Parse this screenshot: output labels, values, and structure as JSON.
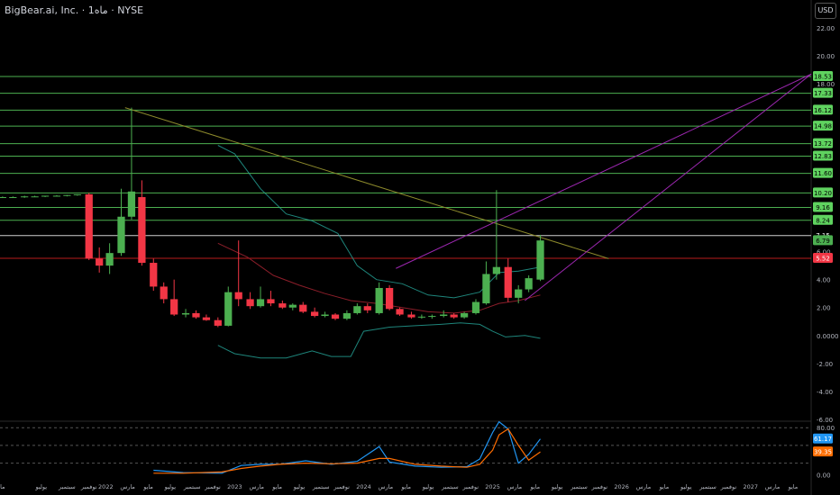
{
  "header": {
    "title": "BigBear.ai, Inc. · 1ماه · NYSE",
    "currency": "USD"
  },
  "colors": {
    "up": "#4caf50",
    "down": "#f23645",
    "hline": "#4caf50",
    "trend_olive": "#8d8a2c",
    "channel_purple": "#9c27b0",
    "band": "#26a69a",
    "mid": "#8b1e2a",
    "support": "#b71c1c",
    "price_line": "#cfcfcf",
    "osc_k": "#2196f3",
    "osc_d": "#ff6d00"
  },
  "chart_data": [
    {
      "type": "candlestick",
      "title": "",
      "ylim": [
        -6,
        24
      ],
      "xlim": [
        2021.18,
        2027.47
      ],
      "y_ticks": [
        {
          "value": 22,
          "label": "22.00"
        },
        {
          "value": 20,
          "label": "20.00"
        },
        {
          "value": 18,
          "label": "18.00"
        },
        {
          "value": 6,
          "label": "6.00"
        },
        {
          "value": 4,
          "label": "4.00"
        },
        {
          "value": 2,
          "label": "2.00"
        },
        {
          "value": 0,
          "label": "0.0000"
        },
        {
          "value": -2,
          "label": "-2.00"
        },
        {
          "value": -4,
          "label": "-4.00"
        },
        {
          "value": -6,
          "label": "-6.00"
        }
      ],
      "x_ticks": [
        {
          "x": 2021.2,
          "label": "ما"
        },
        {
          "x": 2021.5,
          "label": "يوليو"
        },
        {
          "x": 2021.7,
          "label": "سبتمبر"
        },
        {
          "x": 2021.87,
          "label": "نوفمبر"
        },
        {
          "x": 2022.0,
          "label": "2022"
        },
        {
          "x": 2022.17,
          "label": "مارس"
        },
        {
          "x": 2022.33,
          "label": "مايو"
        },
        {
          "x": 2022.5,
          "label": "يوليو"
        },
        {
          "x": 2022.67,
          "label": "سبتمبر"
        },
        {
          "x": 2022.83,
          "label": "نوفمبر"
        },
        {
          "x": 2023.0,
          "label": "2023"
        },
        {
          "x": 2023.17,
          "label": "مارس"
        },
        {
          "x": 2023.33,
          "label": "مايو"
        },
        {
          "x": 2023.5,
          "label": "يوليو"
        },
        {
          "x": 2023.67,
          "label": "سبتمبر"
        },
        {
          "x": 2023.83,
          "label": "نوفمبر"
        },
        {
          "x": 2024.0,
          "label": "2024"
        },
        {
          "x": 2024.17,
          "label": "مارس"
        },
        {
          "x": 2024.33,
          "label": "مايو"
        },
        {
          "x": 2024.5,
          "label": "يوليو"
        },
        {
          "x": 2024.67,
          "label": "سبتمبر"
        },
        {
          "x": 2024.83,
          "label": "نوفمبر"
        },
        {
          "x": 2025.0,
          "label": "2025"
        },
        {
          "x": 2025.17,
          "label": "مارس"
        },
        {
          "x": 2025.33,
          "label": "مايو"
        },
        {
          "x": 2025.5,
          "label": "يوليو"
        },
        {
          "x": 2025.67,
          "label": "سبتمبر"
        },
        {
          "x": 2025.83,
          "label": "نوفمبر"
        },
        {
          "x": 2026.0,
          "label": "2026"
        },
        {
          "x": 2026.17,
          "label": "مارس"
        },
        {
          "x": 2026.33,
          "label": "مايو"
        },
        {
          "x": 2026.5,
          "label": "يوليو"
        },
        {
          "x": 2026.67,
          "label": "سبتمبر"
        },
        {
          "x": 2026.83,
          "label": "نوفمبر"
        },
        {
          "x": 2027.0,
          "label": "2027"
        },
        {
          "x": 2027.17,
          "label": "مارس"
        },
        {
          "x": 2027.33,
          "label": "مايو"
        }
      ],
      "candles": [
        {
          "t": 2021.2,
          "o": 9.9,
          "h": 9.95,
          "l": 9.85,
          "c": 9.9
        },
        {
          "t": 2021.28,
          "o": 9.9,
          "h": 9.95,
          "l": 9.85,
          "c": 9.9
        },
        {
          "t": 2021.37,
          "o": 9.9,
          "h": 10.0,
          "l": 9.85,
          "c": 9.95
        },
        {
          "t": 2021.45,
          "o": 9.95,
          "h": 10.0,
          "l": 9.9,
          "c": 9.95
        },
        {
          "t": 2021.53,
          "o": 9.95,
          "h": 10.0,
          "l": 9.9,
          "c": 10.0
        },
        {
          "t": 2021.62,
          "o": 10.0,
          "h": 10.05,
          "l": 9.95,
          "c": 10.0
        },
        {
          "t": 2021.7,
          "o": 10.0,
          "h": 10.05,
          "l": 9.95,
          "c": 10.05
        },
        {
          "t": 2021.78,
          "o": 10.05,
          "h": 10.1,
          "l": 10.0,
          "c": 10.1
        },
        {
          "t": 2021.87,
          "o": 10.1,
          "h": 10.2,
          "l": 5.4,
          "c": 5.5
        },
        {
          "t": 2021.95,
          "o": 5.5,
          "h": 6.3,
          "l": 4.5,
          "c": 5.0
        },
        {
          "t": 2022.03,
          "o": 5.0,
          "h": 6.6,
          "l": 4.4,
          "c": 5.9
        },
        {
          "t": 2022.12,
          "o": 5.9,
          "h": 10.5,
          "l": 5.7,
          "c": 8.5
        },
        {
          "t": 2022.2,
          "o": 8.5,
          "h": 16.3,
          "l": 8.3,
          "c": 10.3
        },
        {
          "t": 2022.28,
          "o": 9.9,
          "h": 11.1,
          "l": 5.0,
          "c": 5.2
        },
        {
          "t": 2022.37,
          "o": 5.2,
          "h": 5.5,
          "l": 3.2,
          "c": 3.5
        },
        {
          "t": 2022.45,
          "o": 3.5,
          "h": 3.8,
          "l": 2.3,
          "c": 2.6
        },
        {
          "t": 2022.53,
          "o": 2.6,
          "h": 4.0,
          "l": 1.4,
          "c": 1.5
        },
        {
          "t": 2022.62,
          "o": 1.5,
          "h": 1.9,
          "l": 1.3,
          "c": 1.6
        },
        {
          "t": 2022.7,
          "o": 1.6,
          "h": 1.8,
          "l": 1.2,
          "c": 1.3
        },
        {
          "t": 2022.78,
          "o": 1.3,
          "h": 1.5,
          "l": 1.05,
          "c": 1.1
        },
        {
          "t": 2022.87,
          "o": 1.1,
          "h": 1.3,
          "l": 0.6,
          "c": 0.7
        },
        {
          "t": 2022.95,
          "o": 0.7,
          "h": 3.5,
          "l": 0.65,
          "c": 3.1
        },
        {
          "t": 2023.03,
          "o": 3.1,
          "h": 6.8,
          "l": 2.1,
          "c": 2.6
        },
        {
          "t": 2023.12,
          "o": 2.6,
          "h": 3.1,
          "l": 1.9,
          "c": 2.1
        },
        {
          "t": 2023.2,
          "o": 2.1,
          "h": 3.5,
          "l": 2.0,
          "c": 2.6
        },
        {
          "t": 2023.28,
          "o": 2.6,
          "h": 3.2,
          "l": 2.1,
          "c": 2.3
        },
        {
          "t": 2023.37,
          "o": 2.3,
          "h": 2.5,
          "l": 1.9,
          "c": 2.0
        },
        {
          "t": 2023.45,
          "o": 2.0,
          "h": 2.3,
          "l": 1.8,
          "c": 2.2
        },
        {
          "t": 2023.53,
          "o": 2.2,
          "h": 2.4,
          "l": 1.6,
          "c": 1.7
        },
        {
          "t": 2023.62,
          "o": 1.7,
          "h": 2.0,
          "l": 1.3,
          "c": 1.4
        },
        {
          "t": 2023.7,
          "o": 1.4,
          "h": 1.7,
          "l": 1.3,
          "c": 1.5
        },
        {
          "t": 2023.78,
          "o": 1.5,
          "h": 1.6,
          "l": 1.1,
          "c": 1.2
        },
        {
          "t": 2023.87,
          "o": 1.2,
          "h": 1.8,
          "l": 1.1,
          "c": 1.6
        },
        {
          "t": 2023.95,
          "o": 1.6,
          "h": 2.3,
          "l": 1.5,
          "c": 2.1
        },
        {
          "t": 2024.03,
          "o": 2.1,
          "h": 2.3,
          "l": 1.6,
          "c": 1.8
        },
        {
          "t": 2024.12,
          "o": 1.6,
          "h": 3.8,
          "l": 1.5,
          "c": 3.4
        },
        {
          "t": 2024.2,
          "o": 3.4,
          "h": 3.6,
          "l": 1.8,
          "c": 1.9
        },
        {
          "t": 2024.28,
          "o": 1.9,
          "h": 2.0,
          "l": 1.4,
          "c": 1.5
        },
        {
          "t": 2024.37,
          "o": 1.5,
          "h": 1.7,
          "l": 1.2,
          "c": 1.3
        },
        {
          "t": 2024.45,
          "o": 1.3,
          "h": 1.5,
          "l": 1.2,
          "c": 1.35
        },
        {
          "t": 2024.53,
          "o": 1.35,
          "h": 1.5,
          "l": 1.2,
          "c": 1.4
        },
        {
          "t": 2024.62,
          "o": 1.4,
          "h": 1.8,
          "l": 1.3,
          "c": 1.5
        },
        {
          "t": 2024.7,
          "o": 1.5,
          "h": 1.6,
          "l": 1.2,
          "c": 1.3
        },
        {
          "t": 2024.78,
          "o": 1.3,
          "h": 1.7,
          "l": 1.2,
          "c": 1.6
        },
        {
          "t": 2024.87,
          "o": 1.6,
          "h": 2.6,
          "l": 1.5,
          "c": 2.4
        },
        {
          "t": 2024.95,
          "o": 2.3,
          "h": 5.3,
          "l": 2.2,
          "c": 4.4
        },
        {
          "t": 2025.03,
          "o": 4.4,
          "h": 10.4,
          "l": 4.0,
          "c": 4.9
        },
        {
          "t": 2025.12,
          "o": 4.9,
          "h": 5.5,
          "l": 2.4,
          "c": 2.7
        },
        {
          "t": 2025.2,
          "o": 2.7,
          "h": 3.6,
          "l": 2.3,
          "c": 3.3
        },
        {
          "t": 2025.28,
          "o": 3.3,
          "h": 4.3,
          "l": 3.1,
          "c": 4.1
        },
        {
          "t": 2025.37,
          "o": 4.0,
          "h": 7.2,
          "l": 3.9,
          "c": 6.8
        }
      ],
      "horizontal_levels": [
        {
          "value": 18.53,
          "label": "18.53"
        },
        {
          "value": 17.33,
          "label": "17.33"
        },
        {
          "value": 16.12,
          "label": "16.12"
        },
        {
          "value": 14.98,
          "label": "14.98"
        },
        {
          "value": 13.72,
          "label": "13.72"
        },
        {
          "value": 12.83,
          "label": "12.83"
        },
        {
          "value": 11.6,
          "label": "11.60"
        },
        {
          "value": 10.2,
          "label": "10.20"
        },
        {
          "value": 9.16,
          "label": "9.16"
        },
        {
          "value": 8.24,
          "label": "8.24"
        }
      ],
      "price_lines": [
        {
          "value": 7.15,
          "label": "7.15",
          "kind": "white"
        },
        {
          "value": 6.79,
          "label": "6.79",
          "kind": "current"
        },
        {
          "value": 5.52,
          "label": "5.52",
          "kind": "support"
        }
      ],
      "trend_lines": [
        {
          "kind": "olive",
          "points": [
            [
              2022.15,
              16.3
            ],
            [
              2025.9,
              5.5
            ]
          ]
        },
        {
          "kind": "purple",
          "points": [
            [
              2024.25,
              4.8
            ],
            [
              2027.47,
              18.7
            ]
          ]
        },
        {
          "kind": "purple",
          "points": [
            [
              2025.25,
              2.5
            ],
            [
              2027.47,
              18.7
            ]
          ]
        }
      ],
      "bands": {
        "upper": [
          [
            2022.87,
            13.6
          ],
          [
            2023.0,
            13.0
          ],
          [
            2023.2,
            10.5
          ],
          [
            2023.4,
            8.7
          ],
          [
            2023.6,
            8.2
          ],
          [
            2023.8,
            7.3
          ],
          [
            2023.95,
            5.0
          ],
          [
            2024.1,
            4.0
          ],
          [
            2024.3,
            3.7
          ],
          [
            2024.5,
            2.9
          ],
          [
            2024.7,
            2.7
          ],
          [
            2024.9,
            3.1
          ],
          [
            2025.05,
            4.5
          ],
          [
            2025.2,
            4.6
          ],
          [
            2025.37,
            4.9
          ]
        ],
        "mid": [
          [
            2022.87,
            6.6
          ],
          [
            2023.1,
            5.6
          ],
          [
            2023.3,
            4.3
          ],
          [
            2023.5,
            3.6
          ],
          [
            2023.7,
            3.0
          ],
          [
            2023.9,
            2.5
          ],
          [
            2024.1,
            2.3
          ],
          [
            2024.3,
            2.0
          ],
          [
            2024.5,
            1.7
          ],
          [
            2024.7,
            1.6
          ],
          [
            2024.9,
            1.8
          ],
          [
            2025.05,
            2.3
          ],
          [
            2025.2,
            2.5
          ],
          [
            2025.37,
            2.9
          ]
        ],
        "lower": [
          [
            2022.87,
            -0.7
          ],
          [
            2023.0,
            -1.3
          ],
          [
            2023.2,
            -1.6
          ],
          [
            2023.4,
            -1.6
          ],
          [
            2023.6,
            -1.1
          ],
          [
            2023.75,
            -1.5
          ],
          [
            2023.9,
            -1.5
          ],
          [
            2024.0,
            0.3
          ],
          [
            2024.2,
            0.6
          ],
          [
            2024.4,
            0.7
          ],
          [
            2024.6,
            0.8
          ],
          [
            2024.75,
            0.9
          ],
          [
            2024.9,
            0.8
          ],
          [
            2025.0,
            0.3
          ],
          [
            2025.1,
            -0.1
          ],
          [
            2025.25,
            0.0
          ],
          [
            2025.37,
            -0.2
          ]
        ]
      }
    },
    {
      "type": "line",
      "title": "",
      "ylim": [
        -5,
        88
      ],
      "y_ticks": [
        {
          "value": 80,
          "label": "80.00"
        },
        {
          "value": 0,
          "label": "0.00"
        }
      ],
      "levels": [
        80,
        50,
        20
      ],
      "series": [
        {
          "kind": "k",
          "label": "61.17",
          "points": [
            [
              2022.37,
              8
            ],
            [
              2022.6,
              4
            ],
            [
              2022.9,
              3
            ],
            [
              2023.05,
              16
            ],
            [
              2023.2,
              18
            ],
            [
              2023.35,
              18
            ],
            [
              2023.55,
              24
            ],
            [
              2023.75,
              18
            ],
            [
              2023.95,
              23
            ],
            [
              2024.12,
              48
            ],
            [
              2024.2,
              22
            ],
            [
              2024.4,
              15
            ],
            [
              2024.6,
              13
            ],
            [
              2024.8,
              14
            ],
            [
              2024.9,
              27
            ],
            [
              2025.0,
              72
            ],
            [
              2025.05,
              90
            ],
            [
              2025.12,
              78
            ],
            [
              2025.2,
              20
            ],
            [
              2025.28,
              35
            ],
            [
              2025.37,
              61
            ]
          ]
        },
        {
          "kind": "d",
          "label": "39.35",
          "points": [
            [
              2022.37,
              3
            ],
            [
              2022.6,
              3
            ],
            [
              2022.9,
              5
            ],
            [
              2023.05,
              11
            ],
            [
              2023.2,
              15
            ],
            [
              2023.35,
              18
            ],
            [
              2023.55,
              20
            ],
            [
              2023.75,
              19
            ],
            [
              2023.95,
              20
            ],
            [
              2024.12,
              28
            ],
            [
              2024.2,
              28
            ],
            [
              2024.4,
              18
            ],
            [
              2024.6,
              15
            ],
            [
              2024.8,
              13
            ],
            [
              2024.9,
              18
            ],
            [
              2025.0,
              42
            ],
            [
              2025.05,
              68
            ],
            [
              2025.12,
              78
            ],
            [
              2025.2,
              50
            ],
            [
              2025.28,
              25
            ],
            [
              2025.37,
              39
            ]
          ]
        }
      ]
    }
  ]
}
